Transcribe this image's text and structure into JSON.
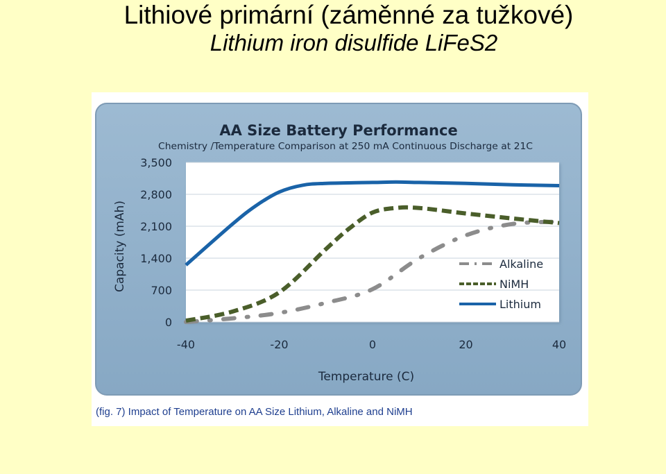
{
  "slide": {
    "title": "Lithiové primární (záměnné za tužkové)",
    "subtitle": "Lithium iron disulfide LiFeS2"
  },
  "figure": {
    "caption": "(fig. 7) Impact of Temperature on AA Size Lithium, Alkaline and NiMH"
  },
  "colors": {
    "panel": "#8fb0cc",
    "plot_bg": "#ffffff",
    "lithium": "#1a63a8",
    "nimh": "#4a5e2a",
    "alkaline": "#8c8c8c",
    "caption": "#1f3f8f"
  },
  "chart_data": {
    "type": "line",
    "title": "AA Size Battery Performance",
    "subtitle": "Chemistry /Temperature Comparison at 250 mA Continuous Discharge at 21C",
    "xlabel": "Temperature (C)",
    "ylabel": "Capacity (mAh)",
    "xlim": [
      -40,
      40
    ],
    "ylim": [
      0,
      3500
    ],
    "x_ticks": [
      -40,
      -20,
      0,
      20,
      40
    ],
    "x_tick_labels": [
      "-40",
      "-20",
      "0",
      "20",
      "40"
    ],
    "y_ticks": [
      0,
      700,
      1400,
      2100,
      2800,
      3500
    ],
    "y_tick_labels": [
      "0",
      "700",
      "1,400",
      "2,100",
      "2,800",
      "3,500"
    ],
    "grid": "horizontal",
    "legend_position": "right",
    "series": [
      {
        "name": "Alkaline",
        "style": "dash-dot",
        "color": "#8c8c8c",
        "x": [
          -40,
          -30,
          -20,
          -10,
          0,
          10,
          20,
          30,
          40
        ],
        "y": [
          0,
          80,
          200,
          420,
          720,
          1400,
          1900,
          2150,
          2200
        ]
      },
      {
        "name": "NiMH",
        "style": "dashed",
        "color": "#4a5e2a",
        "x": [
          -40,
          -30,
          -20,
          -10,
          -5,
          0,
          5,
          10,
          20,
          30,
          40
        ],
        "y": [
          30,
          230,
          650,
          1600,
          2050,
          2400,
          2500,
          2500,
          2380,
          2270,
          2170
        ]
      },
      {
        "name": "Lithium",
        "style": "solid",
        "color": "#1a63a8",
        "x": [
          -40,
          -30,
          -25,
          -20,
          -15,
          -10,
          0,
          5,
          10,
          20,
          30,
          40
        ],
        "y": [
          1250,
          2150,
          2550,
          2850,
          3000,
          3040,
          3060,
          3070,
          3060,
          3040,
          3010,
          2990
        ]
      }
    ]
  }
}
